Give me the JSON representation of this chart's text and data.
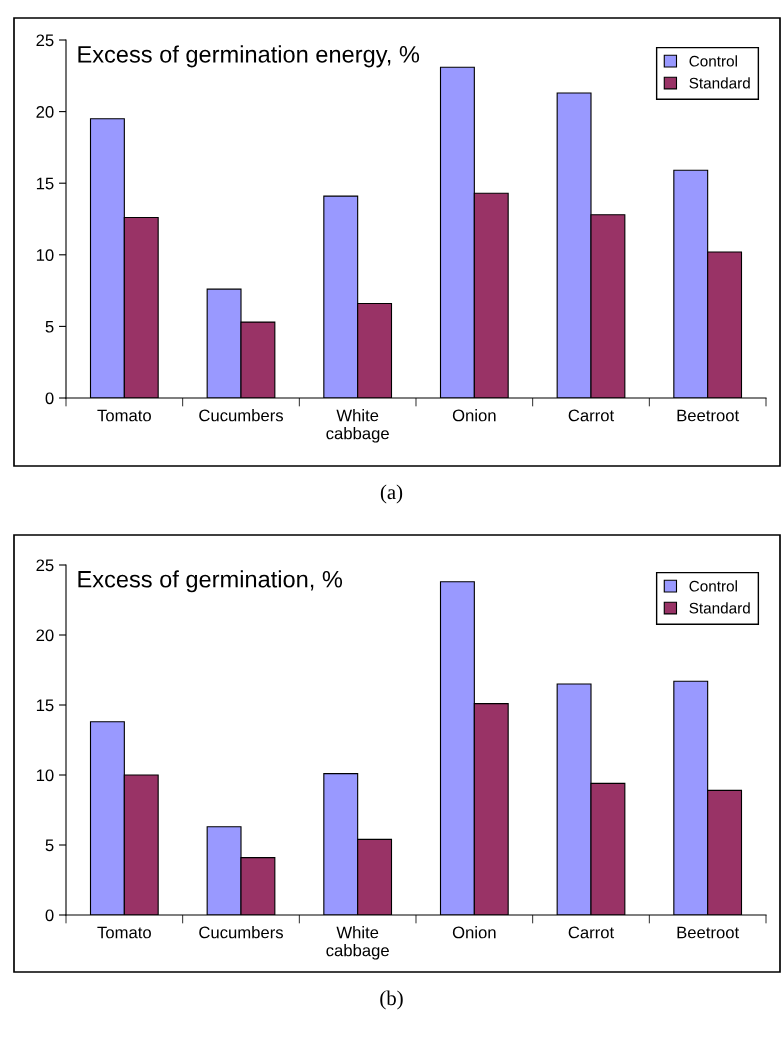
{
  "chart_data": [
    {
      "type": "bar",
      "title": "Excess of germination energy, %",
      "categories": [
        "Tomato",
        "Cucumbers",
        "White\ncabbage",
        "Onion",
        "Carrot",
        "Beetroot"
      ],
      "series": [
        {
          "name": "Control",
          "color": "#9999ff",
          "values": [
            19.5,
            7.6,
            14.1,
            23.1,
            21.3,
            15.9
          ]
        },
        {
          "name": "Standard",
          "color": "#993366",
          "values": [
            12.6,
            5.3,
            6.6,
            14.3,
            12.8,
            10.2
          ]
        }
      ],
      "ylim": [
        0,
        25
      ],
      "yticks": [
        0,
        5,
        10,
        15,
        20,
        25
      ],
      "grid": false,
      "legend": "top right",
      "annotations": [
        "(a)"
      ]
    },
    {
      "type": "bar",
      "title": "Excess of germination, %",
      "categories": [
        "Tomato",
        "Cucumbers",
        "White\ncabbage",
        "Onion",
        "Carrot",
        "Beetroot"
      ],
      "series": [
        {
          "name": "Control",
          "color": "#9999ff",
          "values": [
            13.8,
            6.3,
            10.1,
            23.8,
            16.5,
            16.7
          ]
        },
        {
          "name": "Standard",
          "color": "#993366",
          "values": [
            10.0,
            4.1,
            5.4,
            15.1,
            9.4,
            8.9
          ]
        }
      ],
      "ylim": [
        0,
        25
      ],
      "yticks": [
        0,
        5,
        10,
        15,
        20,
        25
      ],
      "grid": false,
      "legend": "top right",
      "annotations": [
        "(b)"
      ]
    }
  ]
}
